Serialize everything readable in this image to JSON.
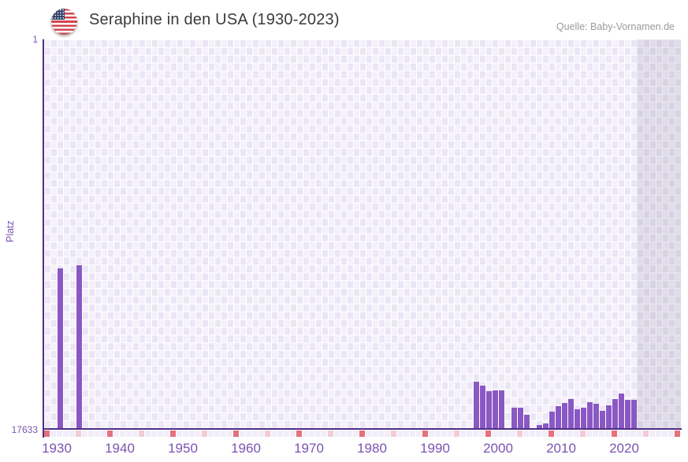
{
  "header": {
    "title": "Seraphine in den USA (1930-2023)",
    "source": "Quelle: Baby-Vornamen.de",
    "flag_icon": "us-flag"
  },
  "chart_data": {
    "type": "bar",
    "title": "Seraphine in den USA (1930-2023)",
    "ylabel": "Platz",
    "y_axis": {
      "top_label": "1",
      "bottom_label": "17633",
      "best_rank": 1,
      "worst_rank": 17633,
      "inverted": true
    },
    "x_axis": {
      "start_year": 1928,
      "end_year": 2028,
      "tick_years": [
        1930,
        1940,
        1950,
        1960,
        1970,
        1980,
        1990,
        2000,
        2010,
        2020
      ]
    },
    "series": [
      {
        "name": "Platz",
        "years": [
          1930,
          1933,
          1996,
          1997,
          1998,
          1999,
          2000,
          2002,
          2003,
          2004,
          2006,
          2007,
          2008,
          2009,
          2010,
          2011,
          2012,
          2013,
          2014,
          2015,
          2016,
          2017,
          2018,
          2019,
          2020,
          2021
        ],
        "ranks": [
          10370,
          10230,
          15530,
          15710,
          15970,
          15910,
          15910,
          16720,
          16720,
          17040,
          17480,
          17430,
          16900,
          16630,
          16500,
          16300,
          16780,
          16700,
          16450,
          16540,
          16840,
          16590,
          16300,
          16070,
          16350,
          16360
        ]
      }
    ],
    "gap_years": [
      2001,
      2005
    ],
    "future_band": {
      "from_year": 2022,
      "to_year": 2028
    },
    "decade_marker_years": [
      1928,
      1938,
      1948,
      1958,
      1968,
      1978,
      1988,
      1998,
      2008,
      2018,
      2028
    ],
    "half_decade_marker_years": [
      1933,
      1943,
      1953,
      1963,
      1973,
      1983,
      1993,
      2003,
      2013,
      2023
    ],
    "legend_position": "none",
    "grid": true,
    "colors": {
      "bar": "#8a58c4",
      "axis_line": "#4e2e85",
      "tick_label": "#7b53b2",
      "title_text": "#3a3a3a",
      "source_text": "#9b9b9b",
      "plot_bg_light": "#f4f1fb",
      "plot_bg_dark": "#ebe6f5",
      "strip_cell": "#f1edf9",
      "decade_marker": "#e4717c",
      "half_decade_marker": "#f2ccd4",
      "flag_red": "#d0454e",
      "flag_blue": "#2e3d66"
    }
  }
}
